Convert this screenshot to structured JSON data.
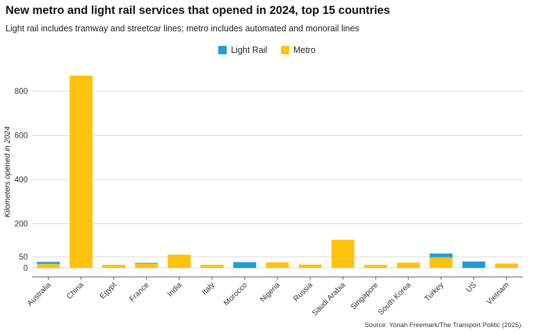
{
  "title": "New metro and light rail services that opened in 2024, top 15 countries",
  "subtitle": "Light rail includes tramway and streetcar lines; metro includes automated and monorail lines",
  "source": "Source: Yonah Freemark/The Transport Politic (2025).",
  "colors": {
    "light_rail": "#1f9bd6",
    "metro": "#ffc20e",
    "grid": "#d9d9d9",
    "axis": "#555555"
  },
  "chart_data": {
    "type": "bar",
    "stacked": true,
    "title": "New metro and light rail services that opened in 2024, top 15 countries",
    "xlabel": "",
    "ylabel": "Kilometers opened in 2024",
    "ylim": [
      -5,
      900
    ],
    "yticks": [
      0,
      50,
      200,
      400,
      600,
      800
    ],
    "legend_position": "top-center",
    "categories": [
      "Australia",
      "China",
      "Egypt",
      "France",
      "India",
      "Italy",
      "Morocco",
      "Nigeria",
      "Russia",
      "Saudi Arabia",
      "Singapore",
      "South Korea",
      "Turkey",
      "US",
      "Vietnam"
    ],
    "series": [
      {
        "name": "Metro",
        "values": [
          18,
          870,
          14,
          20,
          60,
          14,
          0,
          25,
          15,
          127,
          14,
          24,
          48,
          0,
          20
        ]
      },
      {
        "name": "Light Rail",
        "values": [
          9,
          0,
          0,
          3,
          0,
          0,
          26,
          0,
          0,
          0,
          0,
          0,
          17,
          29,
          0
        ]
      }
    ]
  }
}
